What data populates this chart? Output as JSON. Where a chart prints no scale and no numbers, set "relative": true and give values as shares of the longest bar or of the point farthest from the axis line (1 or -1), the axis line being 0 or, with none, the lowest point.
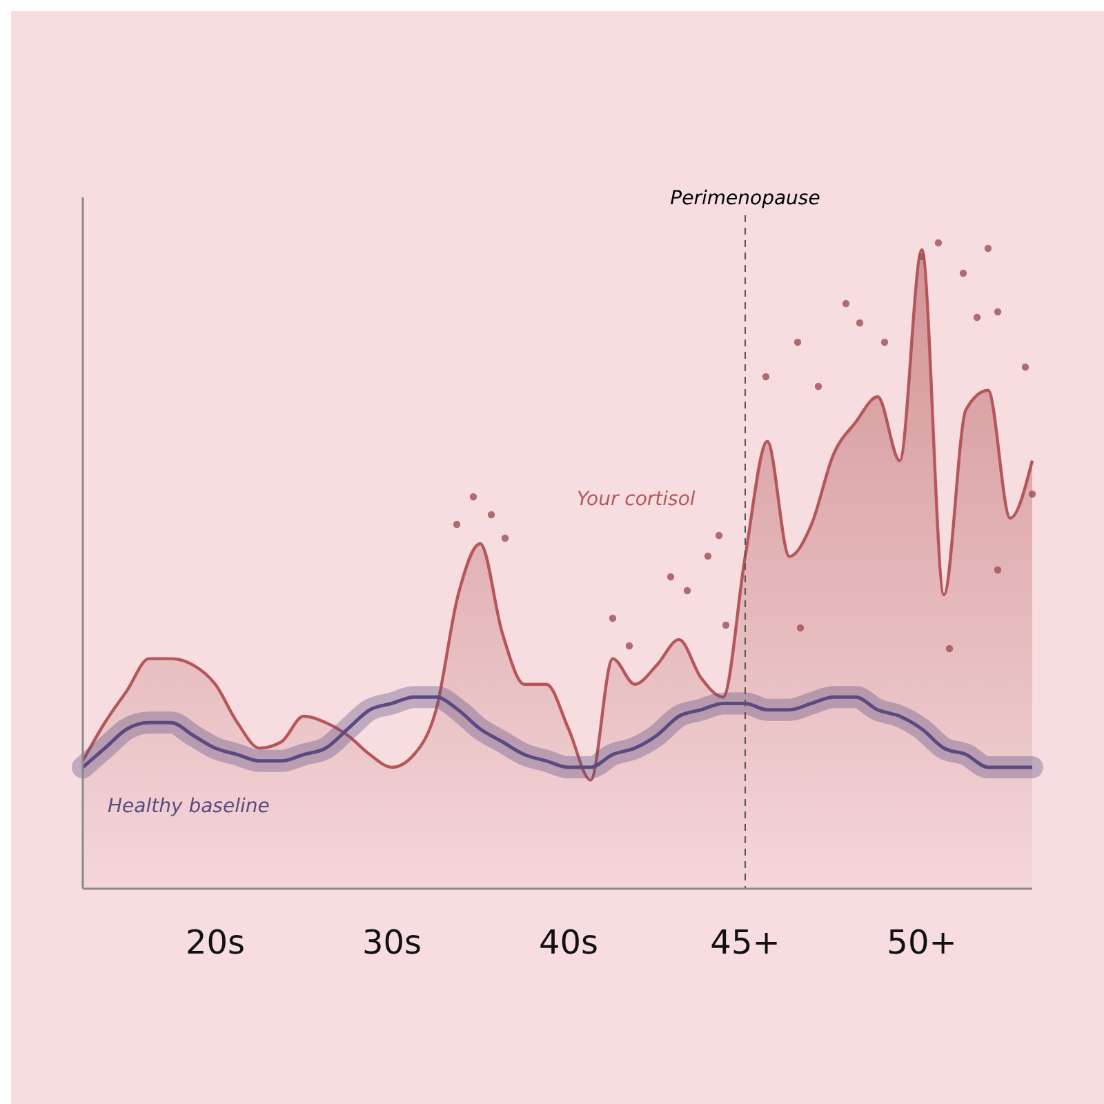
{
  "chart_data": {
    "type": "area",
    "relative": true,
    "categories": [
      null,
      null,
      null,
      null,
      null,
      null,
      "20s",
      null,
      null,
      null,
      null,
      null,
      null,
      null,
      "30s",
      null,
      null,
      null,
      null,
      null,
      null,
      null,
      "40s",
      null,
      null,
      null,
      null,
      null,
      null,
      null,
      "45+",
      null,
      null,
      null,
      null,
      null,
      null,
      null,
      "50+",
      null,
      null,
      null,
      null,
      null
    ],
    "ref_lines": [
      {
        "axis": "x",
        "value": "45+",
        "label": "Perimenopause",
        "line_style": "dashed",
        "color": "#555555"
      }
    ],
    "series": [
      {
        "name": "Your cortisol",
        "color": "#b5575a",
        "values": [
          0.2,
          0.26,
          0.31,
          0.36,
          0.36,
          0.35,
          0.32,
          0.26,
          0.22,
          0.23,
          0.27,
          0.26,
          0.24,
          0.21,
          0.19,
          0.21,
          0.28,
          0.46,
          0.54,
          0.4,
          0.32,
          0.32,
          0.25,
          0.17,
          0.36,
          0.32,
          0.35,
          0.39,
          0.33,
          0.3,
          0.52,
          0.7,
          0.52,
          0.57,
          0.68,
          0.73,
          0.77,
          0.67,
          1,
          0.46,
          0.75,
          0.78,
          0.58,
          0.67
        ]
      },
      {
        "name": "Healthy baseline",
        "type": "line",
        "color": "#5a4a80",
        "values": [
          0.19,
          0.22,
          0.25,
          0.26,
          0.26,
          0.24,
          0.22,
          0.21,
          0.2,
          0.2,
          0.21,
          0.22,
          0.25,
          0.28,
          0.29,
          0.3,
          0.3,
          0.28,
          0.25,
          0.23,
          0.21,
          0.2,
          0.19,
          0.19,
          0.21,
          0.22,
          0.24,
          0.27,
          0.28,
          0.29,
          0.29,
          0.28,
          0.28,
          0.29,
          0.3,
          0.3,
          0.28,
          0.27,
          0.25,
          0.22,
          0.21,
          0.19,
          0.19,
          0.19
        ]
      }
    ]
  }
}
